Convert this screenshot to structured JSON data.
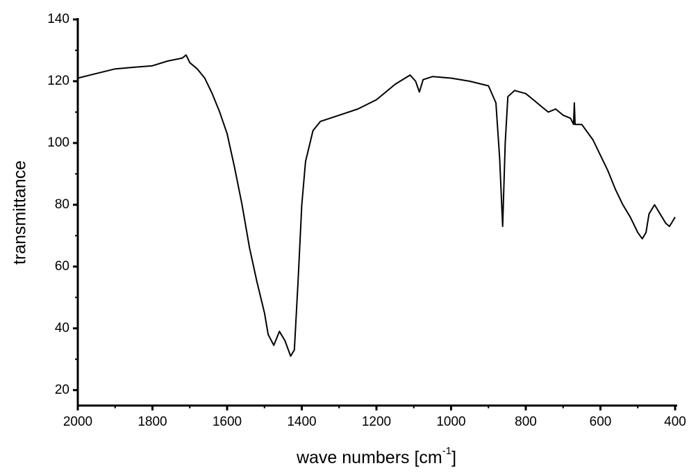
{
  "chart_data": {
    "type": "line",
    "y_label": "transmittance",
    "x_label": {
      "text": "wave numbers [cm",
      "superscript": "-1",
      "suffix": "]"
    },
    "xlim": [
      2000,
      400
    ],
    "ylim": [
      15,
      140
    ],
    "xticks": [
      2000,
      1800,
      1600,
      1400,
      1200,
      1000,
      800,
      600,
      400
    ],
    "xminorticks": [
      1900,
      1700,
      1500,
      1300,
      1100,
      900,
      700,
      500
    ],
    "yticks": [
      20,
      40,
      60,
      80,
      100,
      120,
      140
    ],
    "yminorticks": [
      30,
      50,
      70,
      90,
      110,
      130
    ],
    "grid": false,
    "series": [
      {
        "color": "#000000",
        "x": [
          2000,
          1950,
          1900,
          1850,
          1800,
          1760,
          1720,
          1710,
          1700,
          1680,
          1660,
          1640,
          1620,
          1600,
          1580,
          1560,
          1540,
          1520,
          1500,
          1490,
          1475,
          1460,
          1445,
          1430,
          1420,
          1410,
          1400,
          1390,
          1370,
          1350,
          1300,
          1250,
          1200,
          1150,
          1110,
          1095,
          1085,
          1075,
          1050,
          1000,
          950,
          900,
          880,
          870,
          862,
          855,
          848,
          830,
          800,
          780,
          760,
          740,
          720,
          700,
          680,
          672,
          670,
          668,
          650,
          620,
          600,
          580,
          560,
          540,
          520,
          500,
          488,
          478,
          470,
          455,
          440,
          425,
          415,
          410,
          400
        ],
        "values": [
          121,
          122.5,
          124,
          124.5,
          125,
          126.5,
          127.5,
          128.5,
          126,
          124,
          121,
          116,
          110,
          103,
          92,
          80,
          66,
          55,
          45,
          38,
          34.5,
          39,
          36,
          31,
          33,
          55,
          80,
          94,
          104,
          107,
          109,
          111,
          114,
          119,
          122,
          120,
          116.5,
          120.5,
          121.5,
          121,
          120,
          118.5,
          113,
          95,
          73,
          100,
          115,
          117,
          116,
          114,
          112,
          110,
          111,
          109,
          108,
          106,
          113,
          106,
          106,
          101,
          96,
          91,
          85,
          80,
          76,
          71,
          69,
          71,
          77,
          80,
          77,
          74,
          73,
          74,
          76
        ]
      }
    ]
  }
}
